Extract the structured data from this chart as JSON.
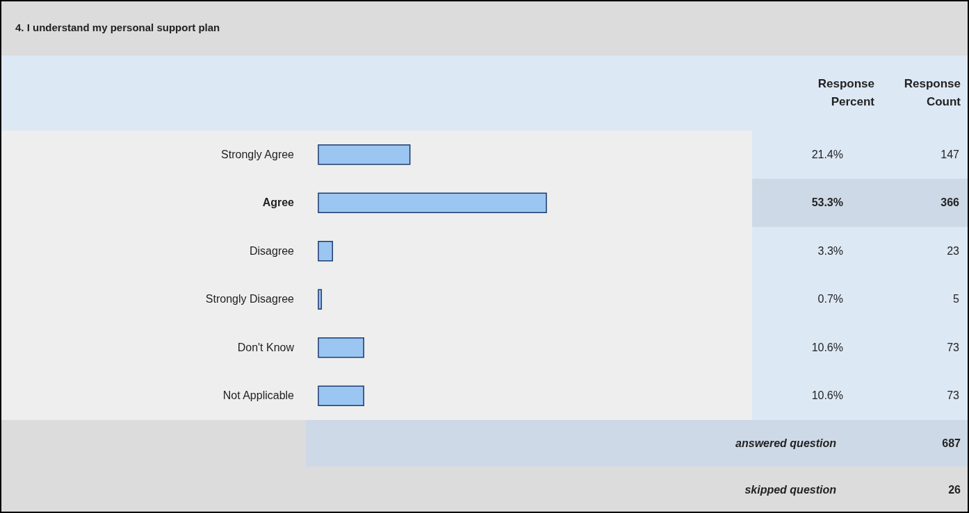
{
  "chart_data": {
    "type": "bar",
    "orientation": "horizontal",
    "title": "4. I understand my personal support plan",
    "categories": [
      "Strongly Agree",
      "Agree",
      "Disagree",
      "Strongly Disagree",
      "Don't Know",
      "Not Applicable"
    ],
    "values": [
      21.4,
      53.3,
      3.3,
      0.7,
      10.6,
      10.6
    ],
    "value_labels": [
      "21.4%",
      "53.3%",
      "3.3%",
      "0.7%",
      "10.6%",
      "10.6%"
    ],
    "color": "#9cc6f2",
    "tick_labels": "y",
    "annotations": [
      "Response Percent",
      "Response Count",
      "147",
      "366",
      "23",
      "5",
      "73",
      "73",
      "answered question",
      "687",
      "skipped question",
      "26"
    ]
  }
}
